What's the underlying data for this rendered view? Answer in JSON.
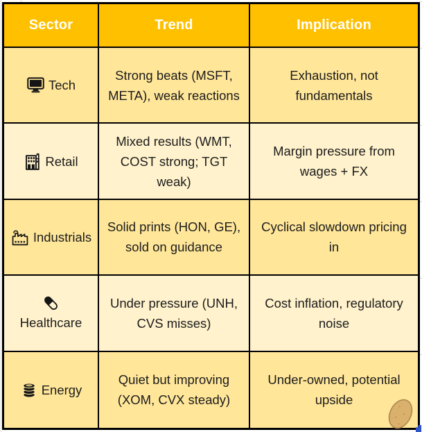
{
  "chart_data": {
    "type": "table",
    "columns": [
      "Sector",
      "Trend",
      "Implication"
    ],
    "rows": [
      {
        "sector_icon": "monitor-icon",
        "sector": "Tech",
        "trend": "Strong beats (MSFT, META), weak reactions",
        "implication": "Exhaustion, not fundamentals"
      },
      {
        "sector_icon": "store-icon",
        "sector": "Retail",
        "trend": "Mixed results (WMT, COST strong; TGT weak)",
        "implication": "Margin pressure from wages + FX"
      },
      {
        "sector_icon": "factory-icon",
        "sector": "Industrials",
        "trend": "Solid prints (HON, GE), sold on guidance",
        "implication": "Cyclical slowdown pricing in"
      },
      {
        "sector_icon": "pill-icon",
        "sector": "Healthcare",
        "trend": "Under pressure (UNH, CVS misses)",
        "implication": "Cost inflation, regulatory noise"
      },
      {
        "sector_icon": "oil-drum-icon",
        "sector": "Energy",
        "trend": "Quiet but improving (XOM, CVX steady)",
        "implication": "Under-owned, potential upside"
      }
    ]
  },
  "colors": {
    "header_bg": "#FFC000",
    "header_text": "#FFFFFF",
    "row_dark": "#FFE699",
    "row_light": "#FFF2CC",
    "border": "#000000",
    "body_text": "#1C1C1C",
    "sticker_fill": "#D9B06C",
    "sticker_stroke": "#AE874E",
    "handle_blue": "#2F55C8",
    "gridline": "#D6D6D6"
  }
}
